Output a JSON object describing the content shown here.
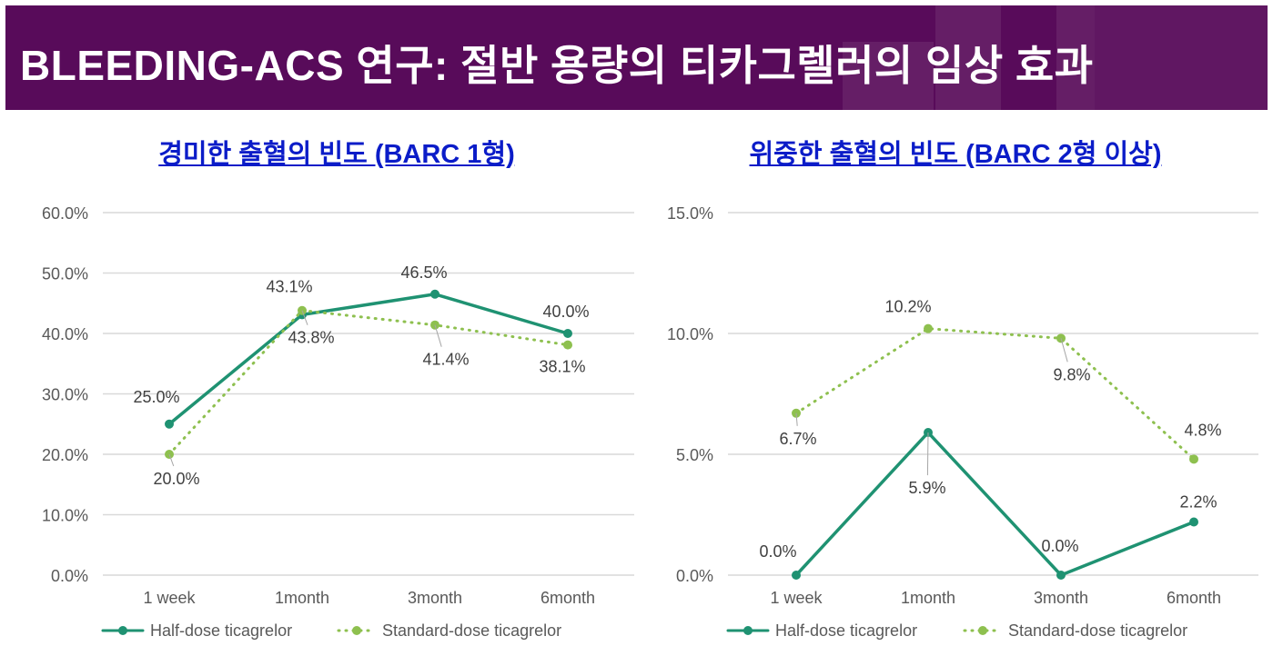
{
  "header": {
    "title": "BLEEDING-ACS 연구: 절반 용량의 티카그렐러의 임상 효과"
  },
  "colors": {
    "banner": "#580b5a",
    "half": "#1f9272",
    "standard": "#8ec04f",
    "title_link": "#0b1cc8"
  },
  "chart_data": [
    {
      "type": "line",
      "title": "경미한 출혈의 빈도 (BARC 1형)",
      "categories": [
        "1 week",
        "1month",
        "3month",
        "6month"
      ],
      "ylim": [
        0,
        60
      ],
      "yticks": [
        "0.0%",
        "10.0%",
        "20.0%",
        "30.0%",
        "40.0%",
        "50.0%",
        "60.0%"
      ],
      "grid": true,
      "legend_position": "bottom",
      "series": [
        {
          "name": "Half-dose ticagrelor",
          "style": "solid",
          "values": [
            25.0,
            43.1,
            46.5,
            40.0
          ],
          "labels": [
            "25.0%",
            "43.1%",
            "46.5%",
            "40.0%"
          ]
        },
        {
          "name": "Standard-dose ticagrelor",
          "style": "dotted",
          "values": [
            20.0,
            43.8,
            41.4,
            38.1
          ],
          "labels": [
            "20.0%",
            "43.8%",
            "41.4%",
            "38.1%"
          ]
        }
      ]
    },
    {
      "type": "line",
      "title": "위중한 출혈의 빈도 (BARC 2형 이상)",
      "categories": [
        "1 week",
        "1month",
        "3month",
        "6month"
      ],
      "ylim": [
        0,
        15
      ],
      "yticks": [
        "0.0%",
        "5.0%",
        "10.0%",
        "15.0%"
      ],
      "grid": true,
      "legend_position": "bottom",
      "series": [
        {
          "name": "Half-dose ticagrelor",
          "style": "solid",
          "values": [
            0.0,
            5.9,
            0.0,
            2.2
          ],
          "labels": [
            "0.0%",
            "5.9%",
            "0.0%",
            "2.2%"
          ]
        },
        {
          "name": "Standard-dose ticagrelor",
          "style": "dotted",
          "values": [
            6.7,
            10.2,
            9.8,
            4.8
          ],
          "labels": [
            "6.7%",
            "10.2%",
            "9.8%",
            "4.8%"
          ]
        }
      ]
    }
  ]
}
